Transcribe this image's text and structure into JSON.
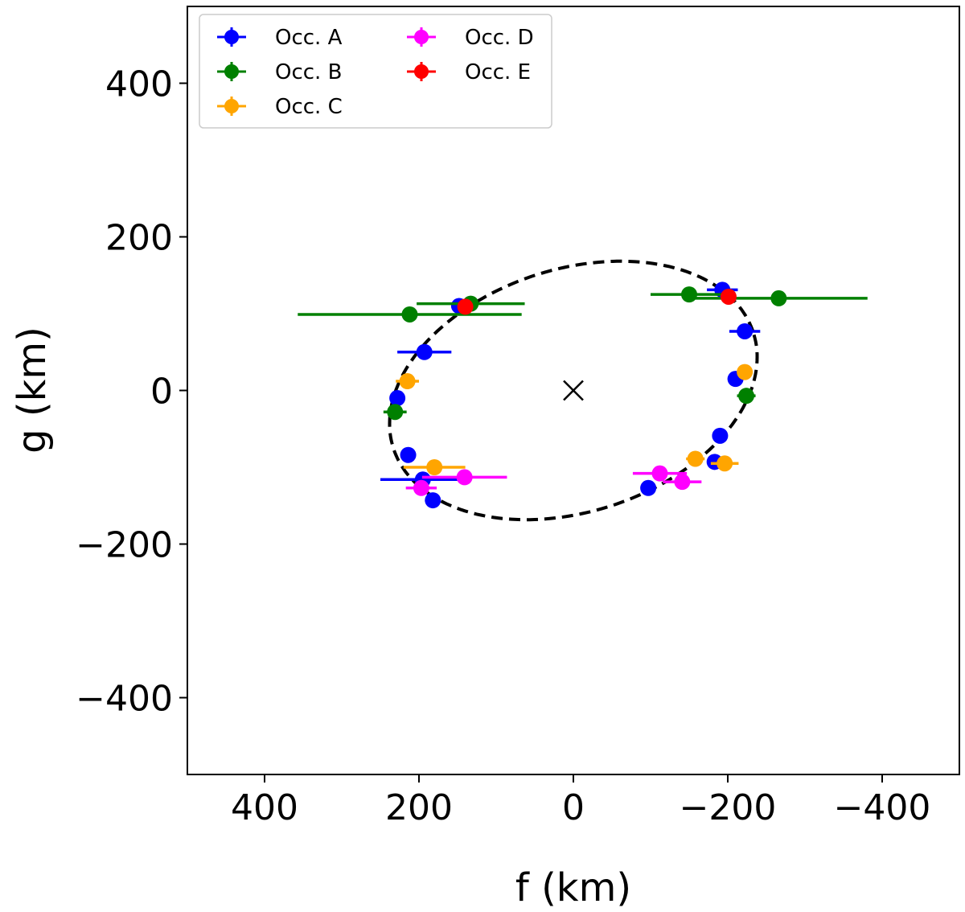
{
  "chart_data": {
    "type": "scatter",
    "title": "",
    "xlabel": "f (km)",
    "ylabel": "g (km)",
    "xlim": [
      500,
      -500
    ],
    "ylim": [
      -500,
      500
    ],
    "xticks": [
      400,
      200,
      0,
      -200,
      -400
    ],
    "xtick_labels": [
      "400",
      "200",
      "0",
      "−200",
      "−400"
    ],
    "yticks": [
      400,
      200,
      0,
      -200,
      -400
    ],
    "ytick_labels": [
      "400",
      "200",
      "0",
      "−200",
      "−400"
    ],
    "grid": false,
    "legend_position": "top-left",
    "center_marker": {
      "f": 0,
      "g": 0,
      "symbol": "x"
    },
    "ellipse_fit": {
      "style": "dashed",
      "color": "#000000",
      "center": [
        0,
        0
      ],
      "semi_major_km": 245,
      "semi_minor_km": 158,
      "rotation_deg": 18
    },
    "series": [
      {
        "name": "Occ. A",
        "color": "#0000ff",
        "points": [
          {
            "f": 148,
            "g": 110,
            "ferr": 10
          },
          {
            "f": 193,
            "g": 50,
            "ferr": 35
          },
          {
            "f": 228,
            "g": -10,
            "ferr": 0
          },
          {
            "f": 214,
            "g": -84,
            "ferr": 0
          },
          {
            "f": 195,
            "g": -116,
            "ferr": 55
          },
          {
            "f": 182,
            "g": -143,
            "ferr": 0
          },
          {
            "f": -97,
            "g": -127,
            "ferr": 0
          },
          {
            "f": -183,
            "g": -93,
            "ferr": 0
          },
          {
            "f": -190,
            "g": -59,
            "ferr": 0
          },
          {
            "f": -210,
            "g": 15,
            "ferr": 0
          },
          {
            "f": -222,
            "g": 77,
            "ferr": 20
          },
          {
            "f": -193,
            "g": 131,
            "ferr": 20
          }
        ]
      },
      {
        "name": "Occ. B",
        "color": "#008000",
        "points": [
          {
            "f": 212,
            "g": 99,
            "ferr": 145
          },
          {
            "f": 133,
            "g": 113,
            "ferr": 70
          },
          {
            "f": 231,
            "g": -28,
            "ferr": 15
          },
          {
            "f": -150,
            "g": 125,
            "ferr": 50
          },
          {
            "f": -266,
            "g": 120,
            "ferr": 115
          },
          {
            "f": -224,
            "g": -7,
            "ferr": 12
          }
        ]
      },
      {
        "name": "Occ. C",
        "color": "#ffa500",
        "points": [
          {
            "f": 215,
            "g": 12,
            "ferr": 15
          },
          {
            "f": 180,
            "g": -100,
            "ferr": 40
          },
          {
            "f": -222,
            "g": 24,
            "ferr": 0
          },
          {
            "f": -158,
            "g": -89,
            "ferr": 12
          },
          {
            "f": -196,
            "g": -95,
            "ferr": 18
          }
        ]
      },
      {
        "name": "Occ. D",
        "color": "#ff00ff",
        "points": [
          {
            "f": 141,
            "g": -113,
            "ferr": 55
          },
          {
            "f": 197,
            "g": -127,
            "ferr": 20
          },
          {
            "f": -112,
            "g": -108,
            "ferr": 35
          },
          {
            "f": -141,
            "g": -119,
            "ferr": 25
          }
        ]
      },
      {
        "name": "Occ. E",
        "color": "#ff0000",
        "points": [
          {
            "f": 140,
            "g": 109,
            "ferr": 0
          },
          {
            "f": -201,
            "g": 122,
            "ferr": 0
          }
        ]
      }
    ]
  }
}
